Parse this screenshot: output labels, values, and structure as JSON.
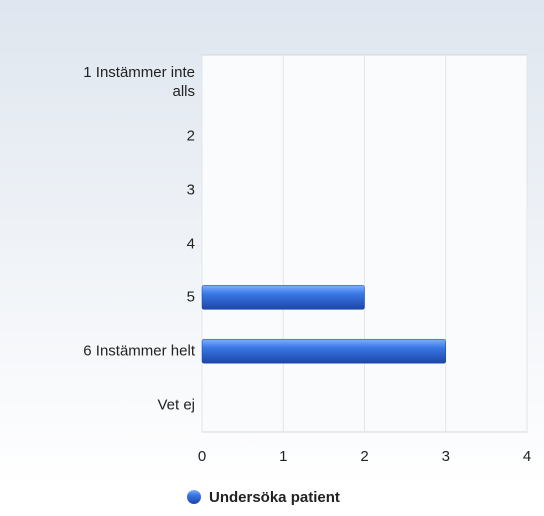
{
  "chart_data": {
    "type": "bar",
    "orientation": "horizontal",
    "categories": [
      "1 Instämmer inte alls",
      "2",
      "3",
      "4",
      "5",
      "6 Instämmer helt",
      "Vet ej"
    ],
    "series": [
      {
        "name": "Undersöka patient",
        "color": "#2a62d0",
        "values": [
          0,
          0,
          0,
          0,
          2,
          3,
          0
        ]
      }
    ],
    "xlim": [
      0,
      4
    ],
    "xticks": [
      0,
      1,
      2,
      3,
      4
    ],
    "grid": true,
    "legend": "bottom"
  }
}
